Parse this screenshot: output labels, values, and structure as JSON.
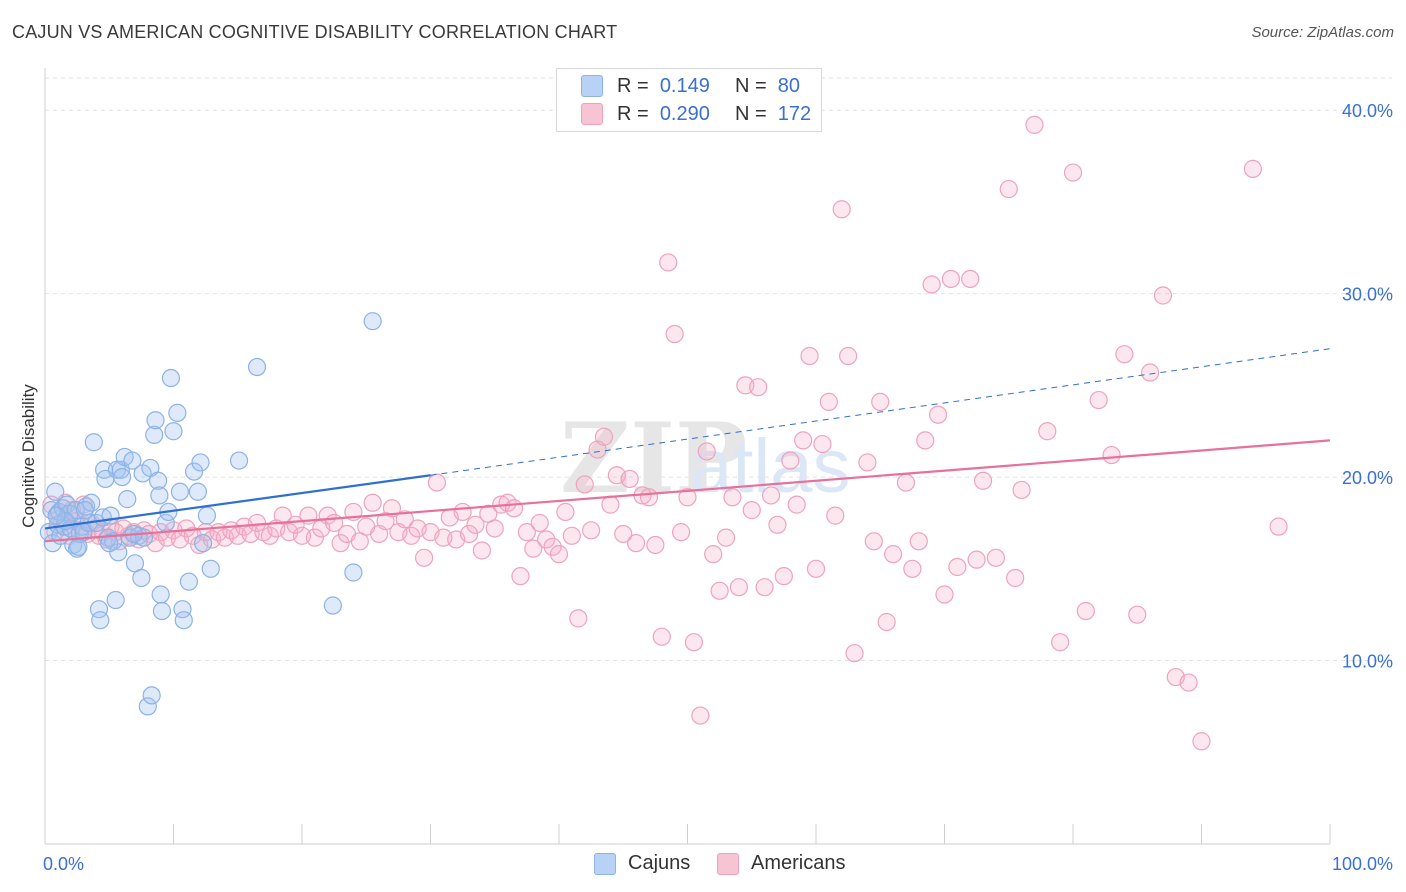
{
  "title": "CAJUN VS AMERICAN COGNITIVE DISABILITY CORRELATION CHART",
  "source": "Source: ZipAtlas.com",
  "watermark": {
    "zip": "ZIP",
    "atlas": "atlas"
  },
  "legend": {
    "rows": [
      {
        "r_label": "R =",
        "r_value": "0.149",
        "n_label": "N =",
        "n_value": "80",
        "color": "#b8d2f5"
      },
      {
        "r_label": "R =",
        "r_value": "0.290",
        "n_label": "N =",
        "n_value": "172",
        "color": "#f7c4d4"
      }
    ]
  },
  "bottom_legend": [
    {
      "label": "Cajuns",
      "color": "#b8d2f5"
    },
    {
      "label": "Americans",
      "color": "#f7c4d4"
    }
  ],
  "colors": {
    "cajun_fill": "rgba(160,195,240,0.35)",
    "cajun_stroke": "#8db2e6",
    "cajun_line": "#2f6fd0",
    "american_fill": "rgba(245,175,200,0.30)",
    "american_stroke": "#eea3bc",
    "american_line": "#e8709a",
    "axis_label": "#3a6fd4",
    "grid": "#e2e2e2"
  },
  "chart_data": {
    "type": "scatter",
    "title": "CAJUN VS AMERICAN COGNITIVE DISABILITY CORRELATION CHART",
    "xlabel": "",
    "ylabel": "Cognitive Disability",
    "x_tick_labels": [
      "0.0%",
      "100.0%"
    ],
    "y_tick_labels": [
      "10.0%",
      "20.0%",
      "30.0%",
      "40.0%"
    ],
    "y_ticks": [
      10,
      20,
      30,
      40
    ],
    "xlim": [
      0,
      100
    ],
    "ylim": [
      0,
      42.3
    ],
    "grid": true,
    "legend_position": "top-center",
    "series": [
      {
        "name": "Cajuns",
        "R": 0.149,
        "N": 80,
        "trend": {
          "x": [
            0,
            30
          ],
          "y": [
            17.2,
            20.1
          ],
          "dashed_to": [
            100,
            27.0
          ]
        },
        "points": [
          [
            0.3,
            17.0
          ],
          [
            0.5,
            18.2
          ],
          [
            0.6,
            16.4
          ],
          [
            0.8,
            19.2
          ],
          [
            1.0,
            17.4
          ],
          [
            1.1,
            18.1
          ],
          [
            1.2,
            16.8
          ],
          [
            1.4,
            18.3
          ],
          [
            1.5,
            17.3
          ],
          [
            1.7,
            18.5
          ],
          [
            1.9,
            18.0
          ],
          [
            2.0,
            17.2
          ],
          [
            2.2,
            16.3
          ],
          [
            2.4,
            18.2
          ],
          [
            2.5,
            16.1
          ],
          [
            2.7,
            16.9
          ],
          [
            2.9,
            17.3
          ],
          [
            3.0,
            17.0
          ],
          [
            3.2,
            18.4
          ],
          [
            3.4,
            17.5
          ],
          [
            3.6,
            18.6
          ],
          [
            3.8,
            21.9
          ],
          [
            4.0,
            17.5
          ],
          [
            4.2,
            12.8
          ],
          [
            4.3,
            12.2
          ],
          [
            4.5,
            17.8
          ],
          [
            4.6,
            20.4
          ],
          [
            4.7,
            19.9
          ],
          [
            4.9,
            16.7
          ],
          [
            5.1,
            17.9
          ],
          [
            5.3,
            16.5
          ],
          [
            5.5,
            13.3
          ],
          [
            5.6,
            20.4
          ],
          [
            5.7,
            15.9
          ],
          [
            5.9,
            20.4
          ],
          [
            6.0,
            20.0
          ],
          [
            6.2,
            21.1
          ],
          [
            6.4,
            18.8
          ],
          [
            6.6,
            16.7
          ],
          [
            6.8,
            20.9
          ],
          [
            7.0,
            15.3
          ],
          [
            7.3,
            16.8
          ],
          [
            7.5,
            14.5
          ],
          [
            7.6,
            20.2
          ],
          [
            7.7,
            16.7
          ],
          [
            8.0,
            7.5
          ],
          [
            8.2,
            20.5
          ],
          [
            8.3,
            8.1
          ],
          [
            8.5,
            22.3
          ],
          [
            8.6,
            23.1
          ],
          [
            8.8,
            19.8
          ],
          [
            8.9,
            19.0
          ],
          [
            9.0,
            13.6
          ],
          [
            9.1,
            12.7
          ],
          [
            9.4,
            17.5
          ],
          [
            9.6,
            18.1
          ],
          [
            9.8,
            25.4
          ],
          [
            10.0,
            22.5
          ],
          [
            10.3,
            23.5
          ],
          [
            10.5,
            19.2
          ],
          [
            10.7,
            12.8
          ],
          [
            10.8,
            12.2
          ],
          [
            11.2,
            14.3
          ],
          [
            11.6,
            20.3
          ],
          [
            11.9,
            19.2
          ],
          [
            12.1,
            20.8
          ],
          [
            12.3,
            16.4
          ],
          [
            12.6,
            17.9
          ],
          [
            12.9,
            15.0
          ],
          [
            15.1,
            20.9
          ],
          [
            16.5,
            26.0
          ],
          [
            22.4,
            13.0
          ],
          [
            24.0,
            14.8
          ],
          [
            25.5,
            28.5
          ],
          [
            3.1,
            18.2
          ],
          [
            2.6,
            16.2
          ],
          [
            1.6,
            17.6
          ],
          [
            0.9,
            17.9
          ],
          [
            5.0,
            16.4
          ],
          [
            6.9,
            16.9
          ]
        ]
      },
      {
        "name": "Americans",
        "R": 0.29,
        "N": 172,
        "trend": {
          "x": [
            0,
            100
          ],
          "y": [
            16.5,
            22.0
          ]
        },
        "points": [
          [
            0.5,
            18.5
          ],
          [
            0.8,
            17.0
          ],
          [
            1.0,
            18.0
          ],
          [
            1.3,
            17.5
          ],
          [
            1.6,
            18.6
          ],
          [
            1.9,
            16.8
          ],
          [
            2.1,
            18.2
          ],
          [
            2.4,
            17.6
          ],
          [
            2.7,
            17.1
          ],
          [
            3.0,
            18.5
          ],
          [
            3.3,
            16.9
          ],
          [
            3.6,
            17.5
          ],
          [
            3.9,
            17.2
          ],
          [
            4.2,
            16.8
          ],
          [
            4.5,
            17.0
          ],
          [
            4.8,
            16.6
          ],
          [
            5.1,
            17.3
          ],
          [
            5.5,
            17.0
          ],
          [
            5.8,
            16.5
          ],
          [
            6.1,
            17.2
          ],
          [
            6.5,
            16.8
          ],
          [
            6.9,
            17.0
          ],
          [
            7.3,
            16.6
          ],
          [
            7.7,
            17.1
          ],
          [
            8.1,
            16.9
          ],
          [
            8.6,
            16.4
          ],
          [
            9.0,
            17.0
          ],
          [
            9.5,
            16.7
          ],
          [
            10.0,
            17.1
          ],
          [
            10.5,
            16.6
          ],
          [
            11.0,
            17.2
          ],
          [
            11.5,
            16.8
          ],
          [
            12.0,
            16.3
          ],
          [
            12.5,
            17.0
          ],
          [
            13.0,
            16.6
          ],
          [
            13.5,
            17.0
          ],
          [
            14.0,
            16.7
          ],
          [
            14.5,
            17.1
          ],
          [
            15.0,
            16.8
          ],
          [
            15.5,
            17.3
          ],
          [
            16.0,
            16.9
          ],
          [
            16.5,
            17.5
          ],
          [
            17.0,
            17.0
          ],
          [
            17.5,
            16.8
          ],
          [
            18.0,
            17.2
          ],
          [
            18.5,
            17.9
          ],
          [
            19.0,
            17.0
          ],
          [
            19.5,
            17.4
          ],
          [
            20.0,
            16.8
          ],
          [
            20.5,
            17.9
          ],
          [
            21.0,
            16.7
          ],
          [
            21.5,
            17.2
          ],
          [
            22.0,
            17.9
          ],
          [
            22.5,
            17.5
          ],
          [
            23.0,
            16.4
          ],
          [
            23.5,
            16.9
          ],
          [
            24.0,
            18.1
          ],
          [
            24.5,
            16.5
          ],
          [
            25.0,
            17.3
          ],
          [
            25.5,
            18.6
          ],
          [
            26.0,
            16.9
          ],
          [
            26.5,
            17.6
          ],
          [
            27.0,
            18.3
          ],
          [
            27.5,
            17.0
          ],
          [
            28.0,
            17.7
          ],
          [
            28.5,
            16.8
          ],
          [
            29.0,
            17.2
          ],
          [
            29.5,
            15.6
          ],
          [
            30.0,
            17.0
          ],
          [
            30.5,
            19.7
          ],
          [
            31.0,
            16.7
          ],
          [
            31.5,
            17.8
          ],
          [
            32.0,
            16.6
          ],
          [
            32.5,
            18.1
          ],
          [
            33.0,
            16.9
          ],
          [
            33.5,
            17.4
          ],
          [
            34.0,
            16.0
          ],
          [
            34.5,
            18.0
          ],
          [
            35.0,
            17.2
          ],
          [
            35.5,
            18.5
          ],
          [
            36.0,
            18.6
          ],
          [
            36.5,
            18.3
          ],
          [
            37.0,
            14.6
          ],
          [
            37.5,
            17.0
          ],
          [
            38.0,
            16.1
          ],
          [
            38.5,
            17.5
          ],
          [
            39.0,
            16.6
          ],
          [
            39.5,
            16.2
          ],
          [
            40.0,
            15.8
          ],
          [
            40.5,
            18.1
          ],
          [
            41.0,
            16.8
          ],
          [
            41.5,
            12.3
          ],
          [
            42.0,
            19.6
          ],
          [
            42.5,
            17.1
          ],
          [
            43.0,
            21.5
          ],
          [
            43.5,
            22.2
          ],
          [
            44.0,
            18.5
          ],
          [
            44.5,
            20.1
          ],
          [
            45.0,
            16.9
          ],
          [
            45.5,
            19.9
          ],
          [
            46.0,
            16.4
          ],
          [
            46.5,
            19.0
          ],
          [
            47.0,
            18.9
          ],
          [
            47.5,
            16.3
          ],
          [
            48.0,
            11.3
          ],
          [
            48.5,
            31.7
          ],
          [
            49.0,
            27.8
          ],
          [
            49.5,
            17.0
          ],
          [
            50.0,
            18.9
          ],
          [
            50.5,
            11.0
          ],
          [
            51.0,
            7.0
          ],
          [
            51.5,
            21.4
          ],
          [
            52.0,
            15.8
          ],
          [
            52.5,
            13.8
          ],
          [
            53.0,
            16.7
          ],
          [
            53.5,
            18.9
          ],
          [
            54.0,
            14.0
          ],
          [
            54.5,
            25.0
          ],
          [
            55.0,
            18.2
          ],
          [
            55.5,
            24.9
          ],
          [
            56.0,
            14.0
          ],
          [
            56.5,
            19.0
          ],
          [
            57.0,
            17.4
          ],
          [
            57.5,
            14.6
          ],
          [
            58.0,
            20.9
          ],
          [
            58.5,
            18.5
          ],
          [
            59.0,
            22.0
          ],
          [
            59.5,
            26.6
          ],
          [
            60.0,
            15.0
          ],
          [
            60.5,
            21.8
          ],
          [
            61.0,
            24.1
          ],
          [
            61.5,
            17.9
          ],
          [
            62.0,
            34.6
          ],
          [
            62.5,
            26.6
          ],
          [
            63.0,
            10.4
          ],
          [
            64.0,
            20.8
          ],
          [
            64.5,
            16.5
          ],
          [
            65.0,
            24.1
          ],
          [
            65.5,
            12.1
          ],
          [
            66.0,
            15.8
          ],
          [
            67.0,
            19.7
          ],
          [
            67.5,
            15.0
          ],
          [
            68.0,
            16.5
          ],
          [
            68.5,
            22.0
          ],
          [
            69.0,
            30.5
          ],
          [
            69.5,
            23.4
          ],
          [
            70.0,
            13.6
          ],
          [
            70.5,
            30.8
          ],
          [
            71.0,
            15.1
          ],
          [
            72.0,
            30.8
          ],
          [
            72.5,
            15.5
          ],
          [
            73.0,
            19.8
          ],
          [
            74.0,
            15.6
          ],
          [
            75.0,
            35.7
          ],
          [
            75.5,
            14.5
          ],
          [
            76.0,
            19.3
          ],
          [
            77.0,
            39.2
          ],
          [
            78.0,
            22.5
          ],
          [
            79.0,
            11.0
          ],
          [
            80.0,
            36.6
          ],
          [
            81.0,
            12.7
          ],
          [
            82.0,
            24.2
          ],
          [
            83.0,
            21.2
          ],
          [
            84.0,
            26.7
          ],
          [
            85.0,
            12.5
          ],
          [
            86.0,
            25.7
          ],
          [
            87.0,
            29.9
          ],
          [
            88.0,
            9.1
          ],
          [
            89.0,
            8.8
          ],
          [
            90.0,
            5.6
          ],
          [
            94.0,
            36.8
          ],
          [
            96.0,
            17.3
          ]
        ]
      }
    ]
  }
}
